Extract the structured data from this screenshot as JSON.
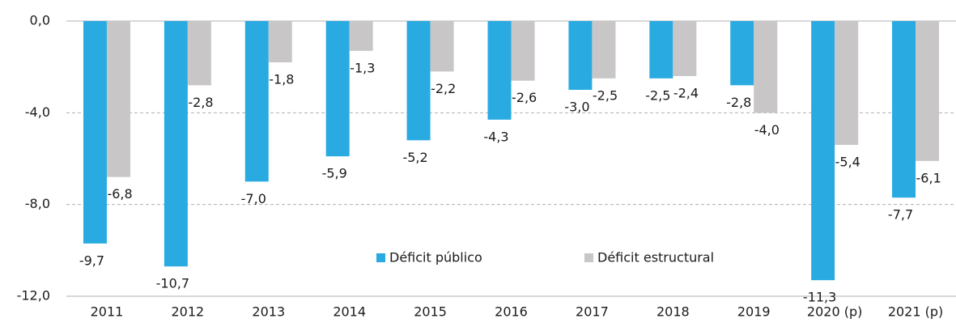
{
  "chart_data": {
    "type": "bar",
    "categories": [
      "2011",
      "2012",
      "2013",
      "2014",
      "2015",
      "2016",
      "2017",
      "2018",
      "2019",
      "2020 (p)",
      "2021 (p)"
    ],
    "series": [
      {
        "name": "Déficit público",
        "color": "#29abe2",
        "values": [
          -9.7,
          -10.7,
          -7.0,
          -5.9,
          -5.2,
          -4.3,
          -3.0,
          -2.5,
          -2.8,
          -11.3,
          -7.7
        ],
        "value_labels": [
          "-9,7",
          "-10,7",
          "-7,0",
          "-5,9",
          "-5,2",
          "-4,3",
          "-3,0",
          "-2,5",
          "-2,8",
          "-11,3",
          "-7,7"
        ]
      },
      {
        "name": "Déficit estructural",
        "color": "#c8c6c6",
        "values": [
          -6.8,
          -2.8,
          -1.8,
          -1.3,
          -2.2,
          -2.6,
          -2.5,
          -2.4,
          -4.0,
          -5.4,
          -6.1
        ],
        "value_labels": [
          "-6,8",
          "-2,8",
          "-1,8",
          "-1,3",
          "-2,2",
          "-2,6",
          "-2,5",
          "-2,4",
          "-4,0",
          "-5,4",
          "-6,1"
        ]
      }
    ],
    "ylim": [
      -12,
      0
    ],
    "yticks": [
      {
        "value": 0,
        "label": "0,0"
      },
      {
        "value": -4,
        "label": "-4,0"
      },
      {
        "value": -8,
        "label": "-8,0"
      },
      {
        "value": -12,
        "label": "-12,0"
      }
    ],
    "grid": true,
    "legend": "bottom"
  }
}
